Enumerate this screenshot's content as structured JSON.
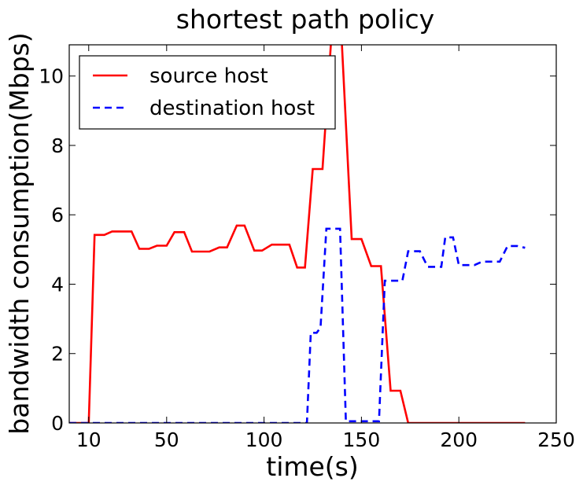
{
  "chart_data": {
    "type": "line",
    "title": "shortest path policy",
    "xlabel": "time(s)",
    "ylabel": "bandwidth consumption(Mbps)",
    "xlim": [
      0,
      250
    ],
    "ylim": [
      0,
      10.9
    ],
    "xticks": [
      10,
      50,
      100,
      150,
      200,
      250
    ],
    "yticks": [
      0,
      2,
      4,
      6,
      8,
      10
    ],
    "grid": false,
    "legend_position": "top-left",
    "series": [
      {
        "name": "source host",
        "color": "#ff0000",
        "style": "solid",
        "x": [
          0,
          10,
          13,
          18,
          22,
          27,
          32,
          36,
          41,
          45,
          50,
          54,
          59,
          63,
          68,
          72,
          77,
          81,
          86,
          90,
          95,
          99,
          104,
          108,
          113,
          117,
          121,
          125,
          130,
          135,
          136,
          140,
          145,
          150,
          155,
          160,
          165,
          170,
          174,
          180,
          200,
          234
        ],
        "y": [
          0,
          0,
          5.42,
          5.42,
          5.52,
          5.52,
          5.52,
          5.02,
          5.02,
          5.11,
          5.11,
          5.5,
          5.5,
          4.94,
          4.94,
          4.94,
          5.06,
          5.06,
          5.69,
          5.69,
          4.97,
          4.97,
          5.14,
          5.14,
          5.14,
          4.48,
          4.48,
          7.32,
          7.32,
          11.5,
          11.5,
          10.9,
          5.3,
          5.3,
          4.52,
          4.52,
          0.93,
          0.93,
          0.0,
          0.0,
          0.0,
          0.0
        ]
      },
      {
        "name": "destination host",
        "color": "#0000ff",
        "style": "dashed",
        "x": [
          0,
          50,
          100,
          110,
          120,
          122,
          124,
          127,
          129,
          132,
          134,
          137,
          139,
          142,
          145,
          150,
          155,
          159,
          162,
          167,
          171,
          174,
          180,
          184,
          187,
          191,
          193,
          197,
          200,
          204,
          208,
          212,
          217,
          221,
          225,
          230,
          234
        ],
        "y": [
          0,
          0,
          0,
          0,
          0,
          0,
          2.6,
          2.6,
          2.75,
          5.6,
          5.6,
          5.6,
          5.6,
          0.05,
          0.05,
          0.05,
          0.05,
          0.05,
          4.1,
          4.1,
          4.1,
          4.95,
          4.95,
          4.5,
          4.5,
          4.5,
          5.35,
          5.35,
          4.55,
          4.55,
          4.55,
          4.65,
          4.65,
          4.65,
          5.1,
          5.1,
          5.05
        ]
      }
    ]
  }
}
